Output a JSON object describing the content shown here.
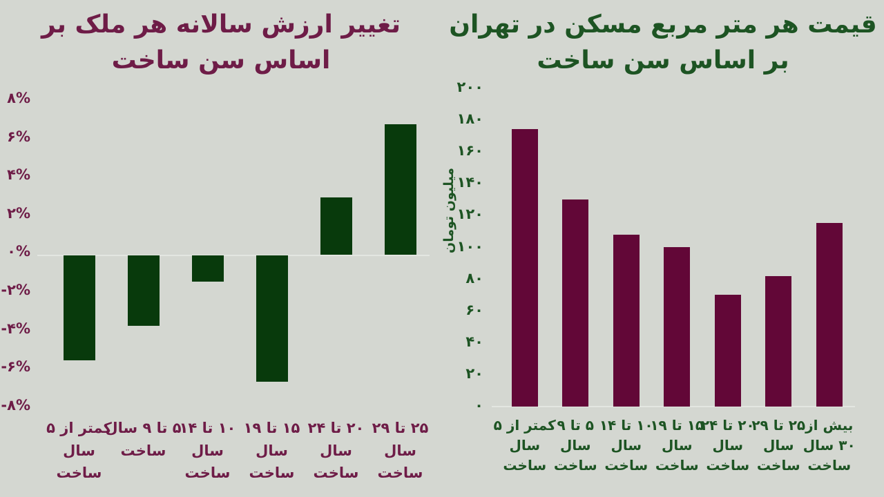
{
  "page": {
    "background_color": "#d4d7d1",
    "axis_line_color": "#e3e6e1"
  },
  "chart_data": [
    {
      "id": "annual-value-change",
      "type": "bar",
      "title_lines": [
        "تغییر ارزش سالانه هر ملک بر",
        "اساس سن ساخت"
      ],
      "title_color": "#6e1c47",
      "tick_color": "#6e1c47",
      "bar_color": "#083a0c",
      "categories": [
        [
          "کمتر از ۵",
          "سال",
          "ساخت"
        ],
        [
          "۵ تا ۹ سال",
          "ساخت"
        ],
        [
          "۱۰ تا ۱۴",
          "سال",
          "ساخت"
        ],
        [
          "۱۵ تا ۱۹",
          "سال",
          "ساخت"
        ],
        [
          "۲۰ تا ۲۴",
          "سال",
          "ساخت"
        ],
        [
          "۲۵ تا ۲۹",
          "سال",
          "ساخت"
        ]
      ],
      "values": [
        -5.5,
        -3.7,
        -1.4,
        -6.6,
        3.0,
        6.8
      ],
      "unit": "%",
      "y_tick_labels": [
        "۸%",
        "۶%",
        "۴%",
        "۲%",
        "۰%",
        "-۲%",
        "-۴%",
        "-۶%",
        "-۸%"
      ],
      "y_tick_values": [
        8,
        6,
        4,
        2,
        0,
        -2,
        -4,
        -6,
        -8
      ],
      "ylim": [
        -8,
        8
      ],
      "xlabel": "",
      "ylabel": "",
      "grid": false,
      "legend": false
    },
    {
      "id": "tehran-price-per-square-meter",
      "type": "bar",
      "title_lines": [
        "قیمت هر متر مربع مسکن در تهران",
        "بر اساس سن ساخت"
      ],
      "title_color": "#1d5423",
      "tick_color": "#1d5423",
      "bar_color": "#620737",
      "categories": [
        [
          "کمتر از ۵",
          "سال",
          "ساخت"
        ],
        [
          "۵ تا ۹",
          "سال",
          "ساخت"
        ],
        [
          "۱۰ تا ۱۴",
          "سال",
          "ساخت"
        ],
        [
          "۱۵ تا ۱۹",
          "سال",
          "ساخت"
        ],
        [
          "۲۰ تا ۲۴",
          "سال",
          "ساخت"
        ],
        [
          "۲۵ تا ۲۹",
          "سال",
          "ساخت"
        ],
        [
          "بیش از",
          "۳۰ سال",
          "ساخت"
        ]
      ],
      "values": [
        174,
        130,
        108,
        100,
        70,
        82,
        115
      ],
      "unit": "میلیون تومان",
      "y_tick_labels": [
        "۲۰۰",
        "۱۸۰",
        "۱۶۰",
        "۱۴۰",
        "۱۲۰",
        "۱۰۰",
        "۸۰",
        "۶۰",
        "۴۰",
        "۲۰",
        "۰"
      ],
      "y_tick_values": [
        200,
        180,
        160,
        140,
        120,
        100,
        80,
        60,
        40,
        20,
        0
      ],
      "ylim": [
        0,
        200
      ],
      "xlabel": "",
      "ylabel": "میلیون تومان",
      "grid": false,
      "legend": false
    }
  ]
}
